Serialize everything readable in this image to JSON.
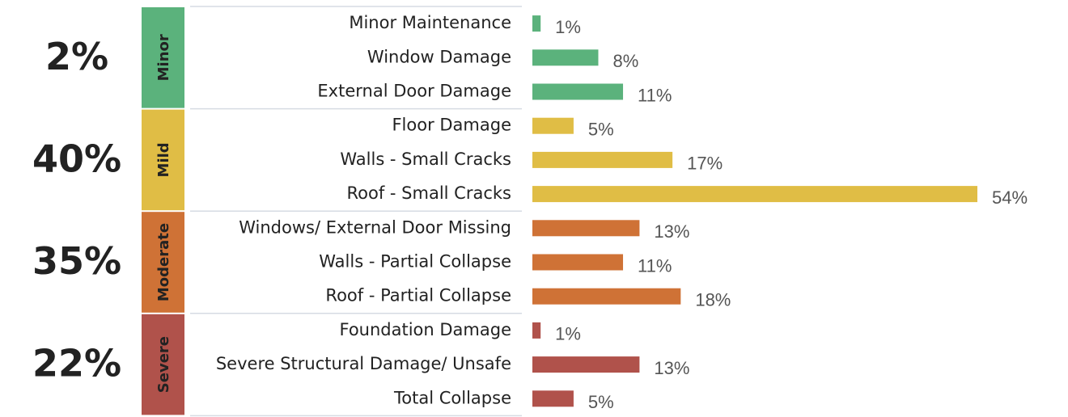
{
  "chart_data": {
    "type": "bar",
    "groups": [
      {
        "name": "Minor",
        "value": 2,
        "value_label": "2%",
        "color": "#5bb27c",
        "categories": [
          "Minor Maintenance",
          "Window Damage",
          "External Door Damage"
        ],
        "values": [
          1,
          8,
          11
        ],
        "value_labels": [
          "1%",
          "8%",
          "11%"
        ]
      },
      {
        "name": "Mild",
        "value": 40,
        "value_label": "40%",
        "color": "#e0bd45",
        "categories": [
          "Floor Damage",
          "Walls - Small Cracks",
          "Roof - Small Cracks"
        ],
        "values": [
          5,
          17,
          54
        ],
        "value_labels": [
          "5%",
          "17%",
          "54%"
        ]
      },
      {
        "name": "Moderate",
        "value": 35,
        "value_label": "35%",
        "color": "#cf7236",
        "categories": [
          "Windows/ External Door Missing",
          "Walls - Partial Collapse",
          "Roof - Partial Collapse"
        ],
        "values": [
          13,
          11,
          18
        ],
        "value_labels": [
          "13%",
          "11%",
          "18%"
        ]
      },
      {
        "name": "Severe",
        "value": 22,
        "value_label": "22%",
        "color": "#b0524b",
        "categories": [
          "Foundation Damage",
          "Severe Structural Damage/ Unsafe",
          "Total Collapse"
        ],
        "values": [
          1,
          13,
          5
        ],
        "value_labels": [
          "1%",
          "13%",
          "5%"
        ]
      }
    ]
  }
}
